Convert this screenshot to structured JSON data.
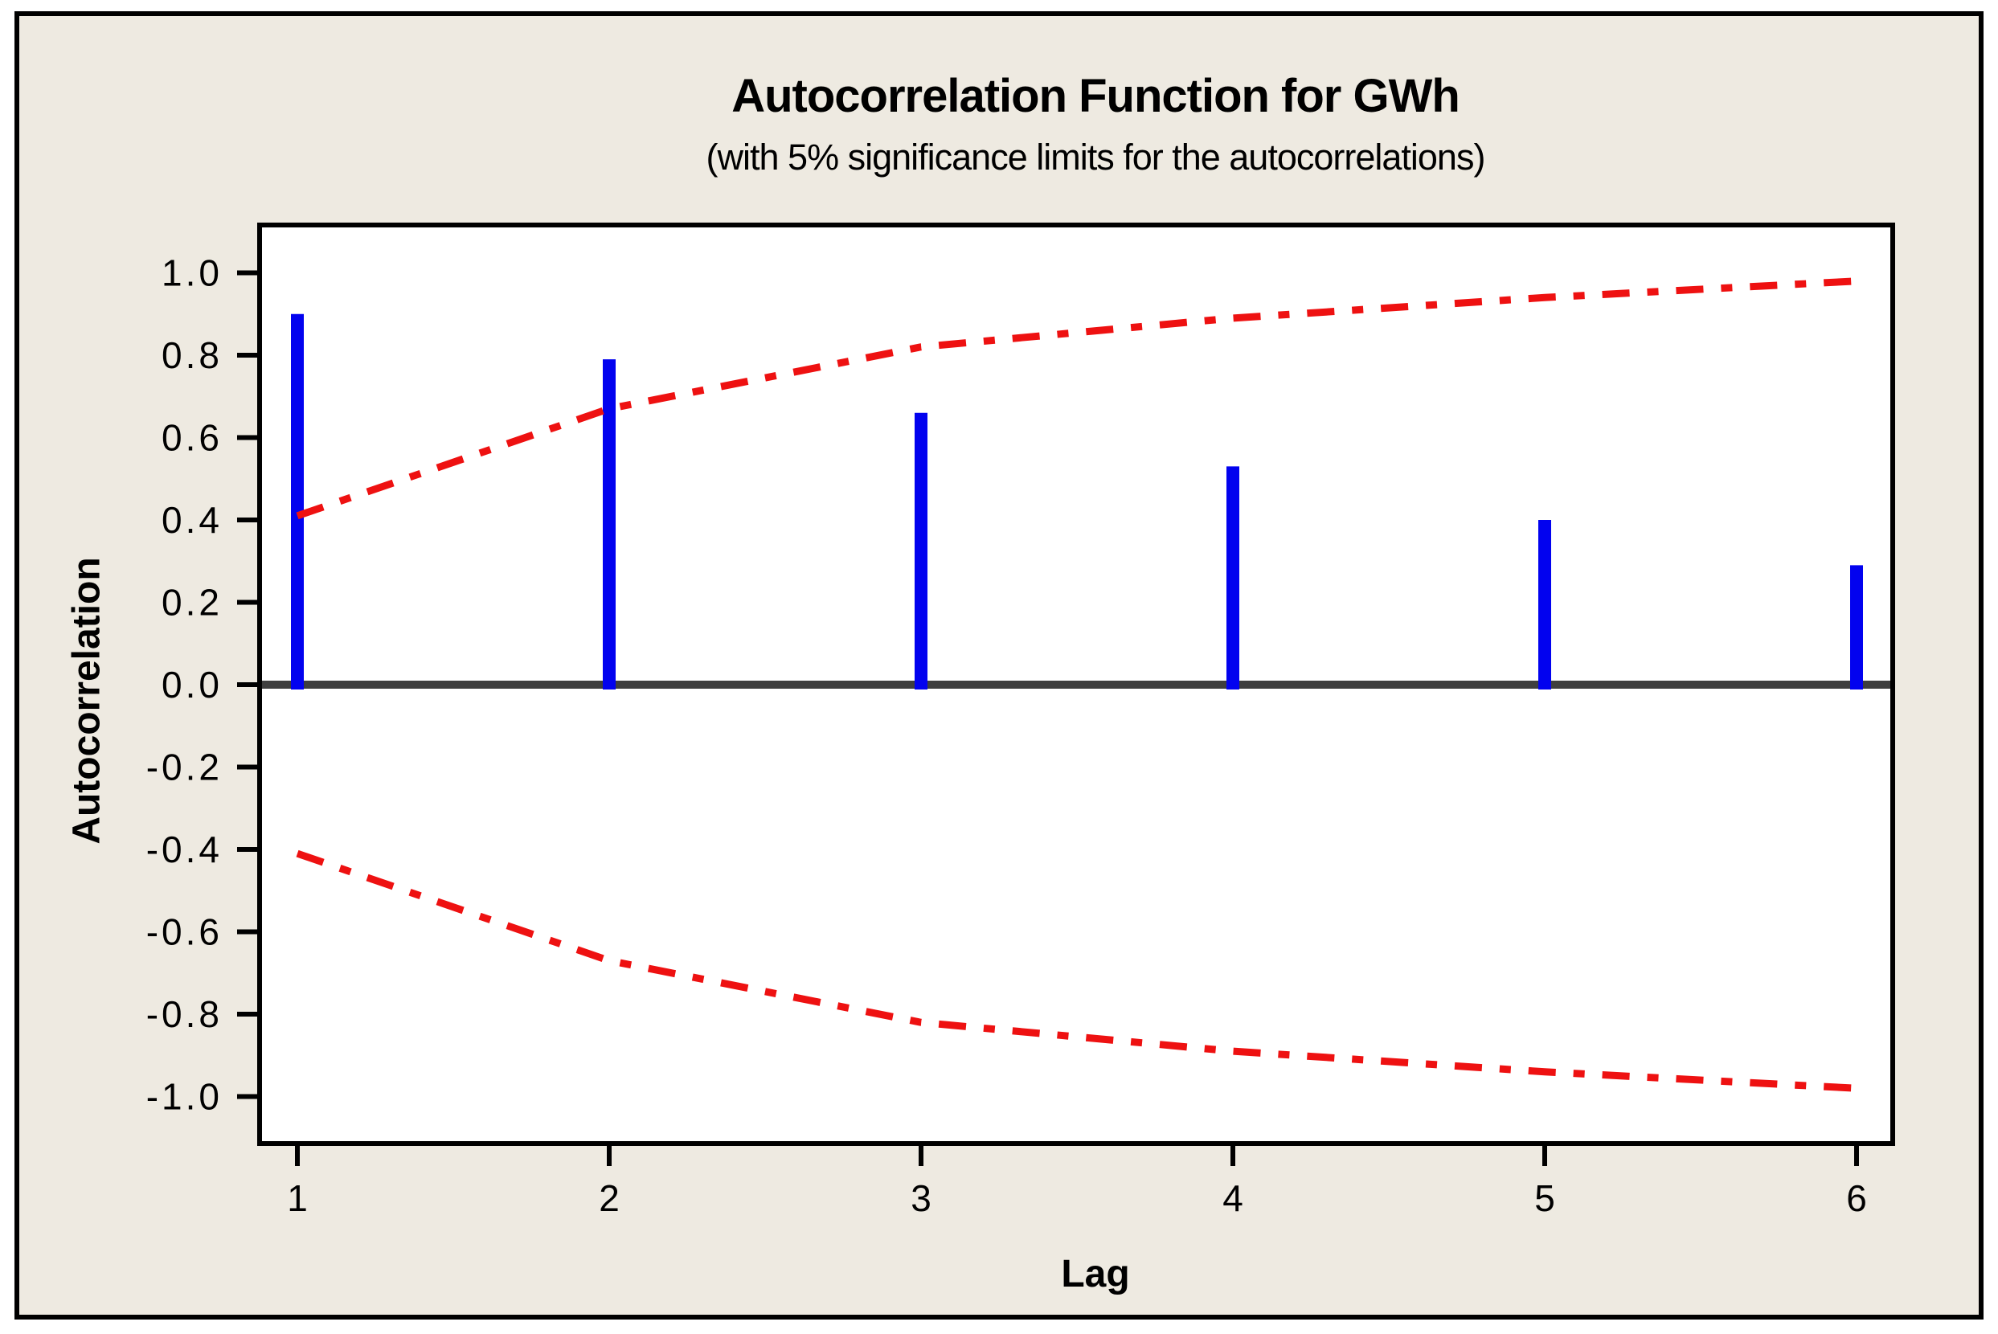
{
  "window": {
    "outer_background": "#FFFFFF",
    "panel_background": "#EEEAE1",
    "border_color": "#000000"
  },
  "chart_data": {
    "type": "bar",
    "title": "Autocorrelation Function for GWh",
    "subtitle": "(with 5% significance limits for the autocorrelations)",
    "xlabel": "Lag",
    "ylabel": "Autocorrelation",
    "x": [
      1,
      2,
      3,
      4,
      5,
      6
    ],
    "xtick_labels": [
      "1",
      "2",
      "3",
      "4",
      "5",
      "6"
    ],
    "series": [
      {
        "name": "autocorrelation-bars",
        "type": "spike",
        "color": "#0202EF",
        "values": [
          0.9,
          0.79,
          0.66,
          0.53,
          0.4,
          0.29
        ]
      },
      {
        "name": "upper-5pct-significance-limit",
        "type": "dash-dot-line",
        "color": "#EE1111",
        "values": [
          0.41,
          0.67,
          0.82,
          0.89,
          0.94,
          0.98
        ]
      },
      {
        "name": "lower-5pct-significance-limit",
        "type": "dash-dot-line",
        "color": "#EE1111",
        "values": [
          -0.41,
          -0.67,
          -0.82,
          -0.89,
          -0.94,
          -0.98
        ]
      }
    ],
    "yticks": [
      1.0,
      0.8,
      0.6,
      0.4,
      0.2,
      0.0,
      -0.2,
      -0.4,
      -0.6,
      -0.8,
      -1.0
    ],
    "ytick_labels": [
      "1.0",
      "0.8",
      "0.6",
      "0.4",
      "0.2",
      "0.0",
      "-0.2",
      "-0.4",
      "-0.6",
      "-0.8",
      "-1.0"
    ],
    "ylim": [
      -1.12,
      1.12
    ],
    "zero_line_color": "#3F3F3F",
    "plot_background": "#FFFFFF",
    "frame_color": "#000000",
    "grid": false,
    "legend": "none"
  }
}
